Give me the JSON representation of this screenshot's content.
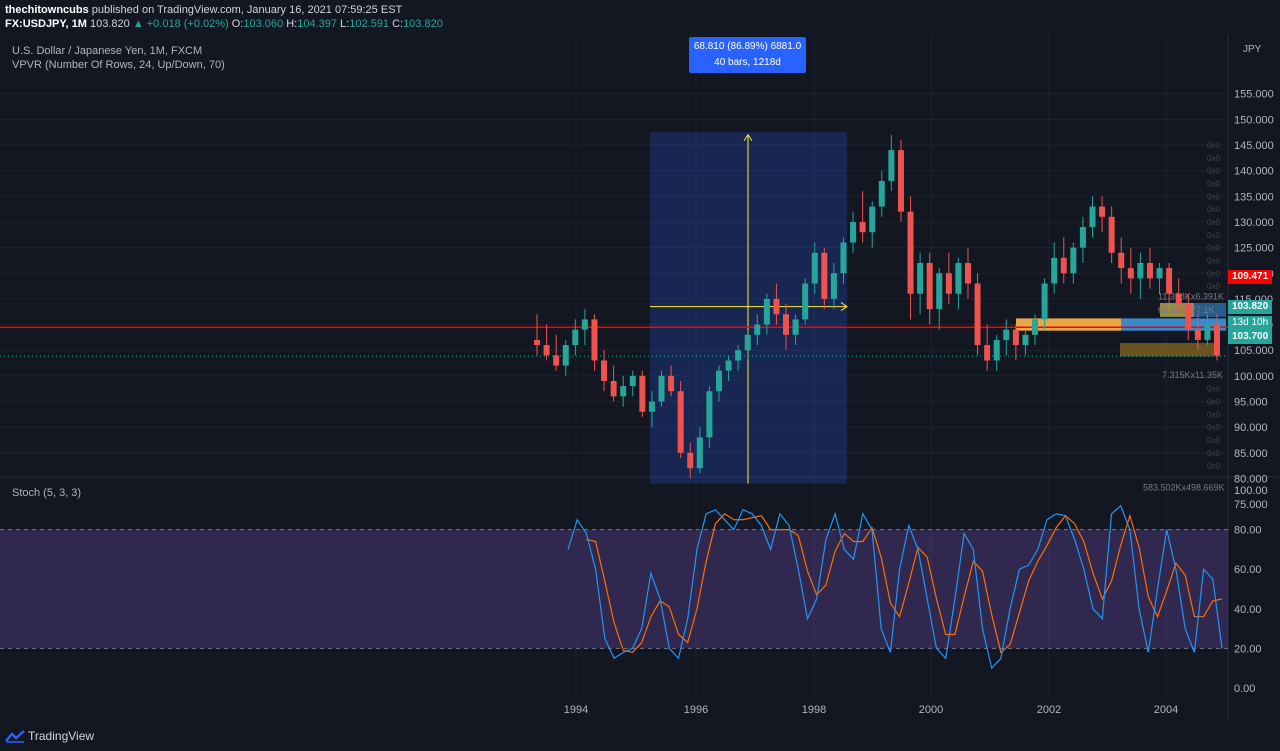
{
  "header": {
    "publisher": "thechitowncubs",
    "published_text": "published on TradingView.com, January 16, 2021 07:59:25 EST",
    "symbol": "FX:USDJPY, 1M",
    "last": "103.820",
    "change": "▲ +0.018 (+0.02%)",
    "open_label": "O:",
    "open": "103.060",
    "high_label": "H:",
    "high": "104.397",
    "low_label": "L:",
    "low": "102.591",
    "close_label": "C:",
    "close": "103.820"
  },
  "main_pane": {
    "title": "U.S. Dollar / Japanese Yen, 1M, FXCM",
    "indicator": "VPVR (Number Of Rows, 24, Up/Down, 70)",
    "currency": "JPY",
    "y_ticks": [
      "155.000",
      "150.000",
      "145.000",
      "140.000",
      "135.000",
      "130.000",
      "125.000",
      "120.000",
      "115.000",
      "110.000",
      "105.000",
      "100.000",
      "95.000",
      "90.000",
      "85.000",
      "80.000",
      "75.000"
    ],
    "price_tags": {
      "horizontal_line": "109.471",
      "last_price": "103.820",
      "countdown": "13d 10h",
      "last_close": "103.700"
    },
    "vpvr_labels": {
      "row1": "11.358Kx6.391K",
      "row2": "68.81Kx77.1K",
      "row3": "7.315Kx11.35K",
      "total": "583.502Kx498.669K",
      "empty": "0x0"
    },
    "measure_tool": {
      "line1": "68.810 (86.89%) 6881.0",
      "line2": "40 bars, 1218d"
    }
  },
  "stoch_pane": {
    "title": "Stoch (5, 3, 3)",
    "y_ticks": [
      "100.00",
      "80.00",
      "60.00",
      "40.00",
      "20.00",
      "0.00"
    ]
  },
  "x_axis": {
    "labels": [
      "1994",
      "1996",
      "1998",
      "2000",
      "2002",
      "2004"
    ]
  },
  "footer": {
    "brand": "TradingView"
  },
  "colors": {
    "up": "#26a69a",
    "down": "#ef5350",
    "hline": "#ff0000",
    "measure": "#2962ff",
    "k_line": "#2196f3",
    "d_line": "#ff6d00",
    "stoch_band": "#7e57c2"
  },
  "chart_data": {
    "type": "candlestick",
    "candles_ohlc": [
      [
        107,
        112,
        104,
        106
      ],
      [
        106,
        110,
        103,
        104
      ],
      [
        104,
        108,
        101,
        102
      ],
      [
        102,
        107,
        100,
        106
      ],
      [
        106,
        111,
        104,
        109
      ],
      [
        109,
        113,
        106,
        111
      ],
      [
        111,
        112,
        101,
        103
      ],
      [
        103,
        105,
        97,
        99
      ],
      [
        99,
        102,
        95,
        96
      ],
      [
        96,
        100,
        94,
        98
      ],
      [
        98,
        101,
        96,
        100
      ],
      [
        100,
        101,
        92,
        93
      ],
      [
        93,
        97,
        90,
        95
      ],
      [
        95,
        101,
        94,
        100
      ],
      [
        100,
        102,
        96,
        97
      ],
      [
        97,
        99,
        84,
        85
      ],
      [
        85,
        87,
        80,
        82
      ],
      [
        82,
        90,
        81,
        88
      ],
      [
        88,
        98,
        86,
        97
      ],
      [
        97,
        102,
        95,
        101
      ],
      [
        101,
        104,
        99,
        103
      ],
      [
        103,
        106,
        101,
        105
      ],
      [
        105,
        109,
        103,
        108
      ],
      [
        108,
        112,
        106,
        110
      ],
      [
        110,
        116,
        108,
        115
      ],
      [
        115,
        118,
        110,
        112
      ],
      [
        112,
        114,
        105,
        108
      ],
      [
        108,
        112,
        106,
        111
      ],
      [
        111,
        119,
        110,
        118
      ],
      [
        118,
        126,
        116,
        124
      ],
      [
        124,
        125,
        113,
        115
      ],
      [
        115,
        122,
        113,
        120
      ],
      [
        120,
        127,
        118,
        126
      ],
      [
        126,
        132,
        124,
        130
      ],
      [
        130,
        136,
        126,
        128
      ],
      [
        128,
        134,
        125,
        133
      ],
      [
        133,
        140,
        131,
        138
      ],
      [
        138,
        147,
        136,
        144
      ],
      [
        144,
        146,
        130,
        132
      ],
      [
        132,
        135,
        111,
        116
      ],
      [
        116,
        124,
        112,
        122
      ],
      [
        122,
        124,
        110,
        113
      ],
      [
        113,
        121,
        109,
        120
      ],
      [
        120,
        124,
        114,
        116
      ],
      [
        116,
        123,
        113,
        122
      ],
      [
        122,
        125,
        115,
        118
      ],
      [
        118,
        120,
        104,
        106
      ],
      [
        106,
        110,
        101,
        103
      ],
      [
        103,
        108,
        101,
        107
      ],
      [
        107,
        111,
        104,
        109
      ],
      [
        109,
        110,
        103,
        106
      ],
      [
        106,
        109,
        104,
        108
      ],
      [
        108,
        112,
        106,
        111
      ],
      [
        111,
        119,
        109,
        118
      ],
      [
        118,
        126,
        116,
        123
      ],
      [
        123,
        127,
        118,
        120
      ],
      [
        120,
        126,
        118,
        125
      ],
      [
        125,
        131,
        122,
        129
      ],
      [
        129,
        135,
        127,
        133
      ],
      [
        133,
        135,
        128,
        131
      ],
      [
        131,
        133,
        122,
        124
      ],
      [
        124,
        127,
        118,
        121
      ],
      [
        121,
        125,
        116,
        119
      ],
      [
        119,
        124,
        115,
        122
      ],
      [
        122,
        125,
        117,
        119
      ],
      [
        119,
        122,
        116,
        121
      ],
      [
        121,
        122,
        114,
        116
      ],
      [
        116,
        119,
        112,
        114
      ],
      [
        114,
        116,
        107,
        109
      ],
      [
        109,
        112,
        105,
        107
      ],
      [
        107,
        112,
        106,
        110
      ],
      [
        110,
        112,
        103,
        104
      ]
    ],
    "measure": {
      "change": 68.81,
      "change_pct": 86.89,
      "ticks": 6881.0,
      "bars": 40,
      "days": 1218
    },
    "hline": 109.471,
    "stoch_k": [
      70,
      85,
      78,
      60,
      25,
      15,
      18,
      20,
      30,
      58,
      45,
      20,
      15,
      35,
      70,
      88,
      90,
      85,
      80,
      90,
      88,
      82,
      70,
      88,
      82,
      60,
      35,
      45,
      75,
      88,
      70,
      65,
      88,
      80,
      30,
      18,
      60,
      82,
      70,
      45,
      20,
      15,
      45,
      78,
      70,
      30,
      10,
      15,
      40,
      60,
      62,
      70,
      85,
      88,
      87,
      75,
      60,
      40,
      35,
      88,
      92,
      80,
      40,
      18,
      50,
      80,
      60,
      30,
      18,
      60,
      55,
      20
    ],
    "stoch_d": [
      null,
      null,
      75,
      74,
      54,
      33,
      19,
      18,
      23,
      36,
      44,
      41,
      27,
      23,
      40,
      64,
      83,
      88,
      85,
      85,
      86,
      87,
      80,
      80,
      80,
      77,
      59,
      47,
      52,
      69,
      78,
      74,
      74,
      81,
      66,
      43,
      36,
      53,
      71,
      66,
      45,
      27,
      27,
      46,
      64,
      59,
      37,
      18,
      22,
      38,
      54,
      64,
      72,
      81,
      87,
      83,
      74,
      58,
      45,
      54,
      72,
      87,
      71,
      46,
      36,
      49,
      63,
      57,
      36,
      36,
      44,
      45
    ],
    "stoch_levels": [
      20,
      80
    ]
  }
}
